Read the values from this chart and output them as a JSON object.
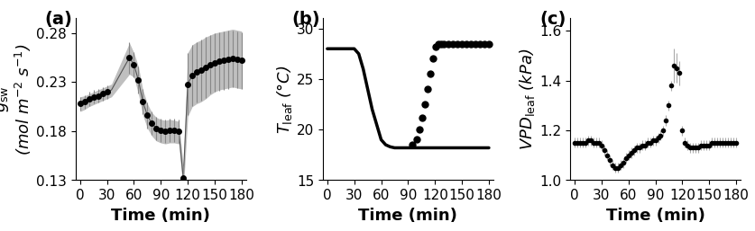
{
  "panel_labels": [
    "(a)",
    "(b)",
    "(c)"
  ],
  "fig_width": 21.28,
  "fig_height": 6.53,
  "panel_a": {
    "ylabel": "$g_{\\mathrm{sw}}$\n(mol m$^{-2}$ s$^{-1}$)",
    "xlabel": "Time (min)",
    "xlim": [
      -5,
      185
    ],
    "ylim": [
      0.13,
      0.295
    ],
    "yticks": [
      0.13,
      0.18,
      0.23,
      0.28
    ],
    "xticks": [
      0,
      30,
      60,
      90,
      120,
      150,
      180
    ],
    "mean_x": [
      0,
      5,
      10,
      15,
      20,
      25,
      30,
      35,
      55,
      60,
      65,
      70,
      75,
      80,
      85,
      90,
      95,
      100,
      105,
      110,
      115,
      120,
      125,
      130,
      135,
      140,
      145,
      150,
      155,
      160,
      165,
      170,
      175,
      180
    ],
    "mean_y": [
      0.208,
      0.21,
      0.213,
      0.215,
      0.216,
      0.218,
      0.22,
      0.222,
      0.255,
      0.248,
      0.232,
      0.21,
      0.196,
      0.188,
      0.183,
      0.181,
      0.18,
      0.181,
      0.181,
      0.18,
      0.132,
      0.228,
      0.237,
      0.24,
      0.242,
      0.245,
      0.248,
      0.25,
      0.251,
      0.252,
      0.253,
      0.254,
      0.253,
      0.252
    ],
    "shade_x": [
      0,
      5,
      10,
      15,
      20,
      25,
      30,
      35,
      55,
      60,
      65,
      70,
      75,
      80,
      85,
      90,
      95,
      100,
      105,
      110,
      115,
      120,
      125,
      130,
      135,
      140,
      145,
      150,
      155,
      160,
      165,
      170,
      175,
      180
    ],
    "shade_upper": [
      0.215,
      0.216,
      0.218,
      0.22,
      0.222,
      0.224,
      0.226,
      0.228,
      0.27,
      0.26,
      0.246,
      0.222,
      0.208,
      0.199,
      0.194,
      0.192,
      0.191,
      0.192,
      0.191,
      0.19,
      0.145,
      0.26,
      0.268,
      0.271,
      0.273,
      0.276,
      0.278,
      0.28,
      0.281,
      0.282,
      0.283,
      0.284,
      0.283,
      0.282
    ],
    "shade_lower": [
      0.2,
      0.202,
      0.205,
      0.207,
      0.209,
      0.211,
      0.213,
      0.215,
      0.238,
      0.235,
      0.218,
      0.196,
      0.183,
      0.175,
      0.17,
      0.168,
      0.167,
      0.168,
      0.168,
      0.167,
      0.118,
      0.195,
      0.205,
      0.208,
      0.21,
      0.213,
      0.217,
      0.22,
      0.222,
      0.223,
      0.224,
      0.225,
      0.224,
      0.223
    ],
    "dot_x": [
      0,
      5,
      10,
      15,
      20,
      25,
      30,
      55,
      60,
      65,
      70,
      75,
      80,
      85,
      90,
      95,
      100,
      105,
      110,
      115,
      120,
      125,
      130,
      135,
      140,
      145,
      150,
      155,
      160,
      165,
      170,
      175,
      180
    ],
    "dot_y": [
      0.208,
      0.21,
      0.213,
      0.215,
      0.216,
      0.218,
      0.22,
      0.255,
      0.248,
      0.232,
      0.21,
      0.196,
      0.188,
      0.183,
      0.181,
      0.18,
      0.181,
      0.181,
      0.18,
      0.132,
      0.228,
      0.237,
      0.24,
      0.242,
      0.245,
      0.248,
      0.25,
      0.251,
      0.252,
      0.253,
      0.254,
      0.253,
      0.252
    ],
    "dot_err": [
      0.007,
      0.007,
      0.007,
      0.007,
      0.007,
      0.007,
      0.007,
      0.016,
      0.013,
      0.014,
      0.013,
      0.013,
      0.012,
      0.012,
      0.012,
      0.012,
      0.012,
      0.012,
      0.012,
      0.013,
      0.032,
      0.031,
      0.031,
      0.031,
      0.031,
      0.03,
      0.03,
      0.03,
      0.03,
      0.03,
      0.029,
      0.029,
      0.029
    ]
  },
  "panel_b": {
    "ylabel": "$T_{\\mathrm{leaf}}$ (\\u00b0C)",
    "xlabel": "Time (min)",
    "xlim": [
      -5,
      185
    ],
    "ylim": [
      15,
      31
    ],
    "yticks": [
      15,
      20,
      25,
      30
    ],
    "xticks": [
      0,
      30,
      60,
      90,
      120,
      150,
      180
    ],
    "line_x": [
      0,
      5,
      10,
      15,
      20,
      25,
      30,
      35,
      40,
      45,
      50,
      55,
      60,
      65,
      70,
      75,
      80,
      85,
      90,
      95,
      100,
      105,
      110,
      115,
      120,
      125,
      130,
      135,
      140,
      145,
      150,
      155,
      160,
      165,
      170,
      175,
      180
    ],
    "line_y": [
      28.0,
      28.0,
      28.0,
      28.0,
      28.0,
      28.0,
      28.0,
      27.5,
      26.0,
      24.0,
      22.0,
      20.5,
      19.0,
      18.5,
      18.3,
      18.2,
      18.2,
      18.2,
      18.2,
      18.2,
      18.2,
      18.2,
      18.2,
      18.2,
      18.2,
      18.2,
      18.2,
      18.2,
      18.2,
      18.2,
      18.2,
      18.2,
      18.2,
      18.2,
      18.2,
      18.2,
      18.2
    ],
    "dot_x": [
      95,
      100,
      103,
      106,
      109,
      112,
      115,
      118,
      121,
      124,
      127,
      130,
      135,
      140,
      145,
      150,
      155,
      160,
      165,
      170,
      175,
      180
    ],
    "dot_y": [
      18.5,
      19.0,
      20.0,
      21.2,
      22.5,
      24.0,
      25.5,
      27.0,
      28.2,
      28.5,
      28.5,
      28.5,
      28.5,
      28.5,
      28.5,
      28.5,
      28.5,
      28.5,
      28.5,
      28.5,
      28.5,
      28.5
    ]
  },
  "panel_c": {
    "ylabel": "VPD$_{\\mathrm{leaf}}$ (kPa)",
    "xlabel": "Time (min)",
    "xlim": [
      -5,
      185
    ],
    "ylim": [
      1.0,
      1.65
    ],
    "yticks": [
      1.0,
      1.2,
      1.4,
      1.6
    ],
    "xticks": [
      0,
      30,
      60,
      90,
      120,
      150,
      180
    ],
    "dot_x": [
      0,
      3,
      6,
      9,
      12,
      15,
      18,
      21,
      24,
      27,
      30,
      33,
      36,
      39,
      42,
      45,
      48,
      51,
      54,
      57,
      60,
      63,
      66,
      69,
      72,
      75,
      78,
      81,
      84,
      87,
      90,
      93,
      96,
      99,
      102,
      105,
      108,
      111,
      114,
      117,
      120,
      123,
      126,
      129,
      132,
      135,
      138,
      141,
      144,
      147,
      150,
      153,
      156,
      159,
      162,
      165,
      168,
      171,
      174,
      177,
      180
    ],
    "dot_y": [
      1.15,
      1.15,
      1.15,
      1.15,
      1.15,
      1.16,
      1.16,
      1.15,
      1.15,
      1.15,
      1.14,
      1.12,
      1.1,
      1.08,
      1.06,
      1.05,
      1.05,
      1.06,
      1.07,
      1.09,
      1.1,
      1.11,
      1.12,
      1.13,
      1.13,
      1.14,
      1.14,
      1.15,
      1.15,
      1.16,
      1.16,
      1.17,
      1.18,
      1.2,
      1.24,
      1.3,
      1.38,
      1.46,
      1.45,
      1.43,
      1.2,
      1.15,
      1.14,
      1.13,
      1.13,
      1.13,
      1.13,
      1.14,
      1.14,
      1.14,
      1.14,
      1.15,
      1.15,
      1.15,
      1.15,
      1.15,
      1.15,
      1.15,
      1.15,
      1.15,
      1.15
    ],
    "dot_err": [
      0.02,
      0.02,
      0.02,
      0.02,
      0.02,
      0.02,
      0.02,
      0.02,
      0.02,
      0.02,
      0.02,
      0.02,
      0.02,
      0.02,
      0.02,
      0.02,
      0.02,
      0.02,
      0.02,
      0.02,
      0.02,
      0.02,
      0.02,
      0.02,
      0.02,
      0.02,
      0.02,
      0.02,
      0.02,
      0.02,
      0.02,
      0.02,
      0.02,
      0.02,
      0.02,
      0.02,
      0.02,
      0.07,
      0.06,
      0.05,
      0.02,
      0.02,
      0.02,
      0.02,
      0.02,
      0.02,
      0.02,
      0.02,
      0.02,
      0.02,
      0.02,
      0.02,
      0.02,
      0.02,
      0.02,
      0.02,
      0.02,
      0.02,
      0.02,
      0.02,
      0.02
    ]
  },
  "dot_color": "#000000",
  "shade_color": "#808080",
  "line_color": "#000000",
  "label_fontsize": 13,
  "tick_fontsize": 11,
  "panel_label_fontsize": 14
}
